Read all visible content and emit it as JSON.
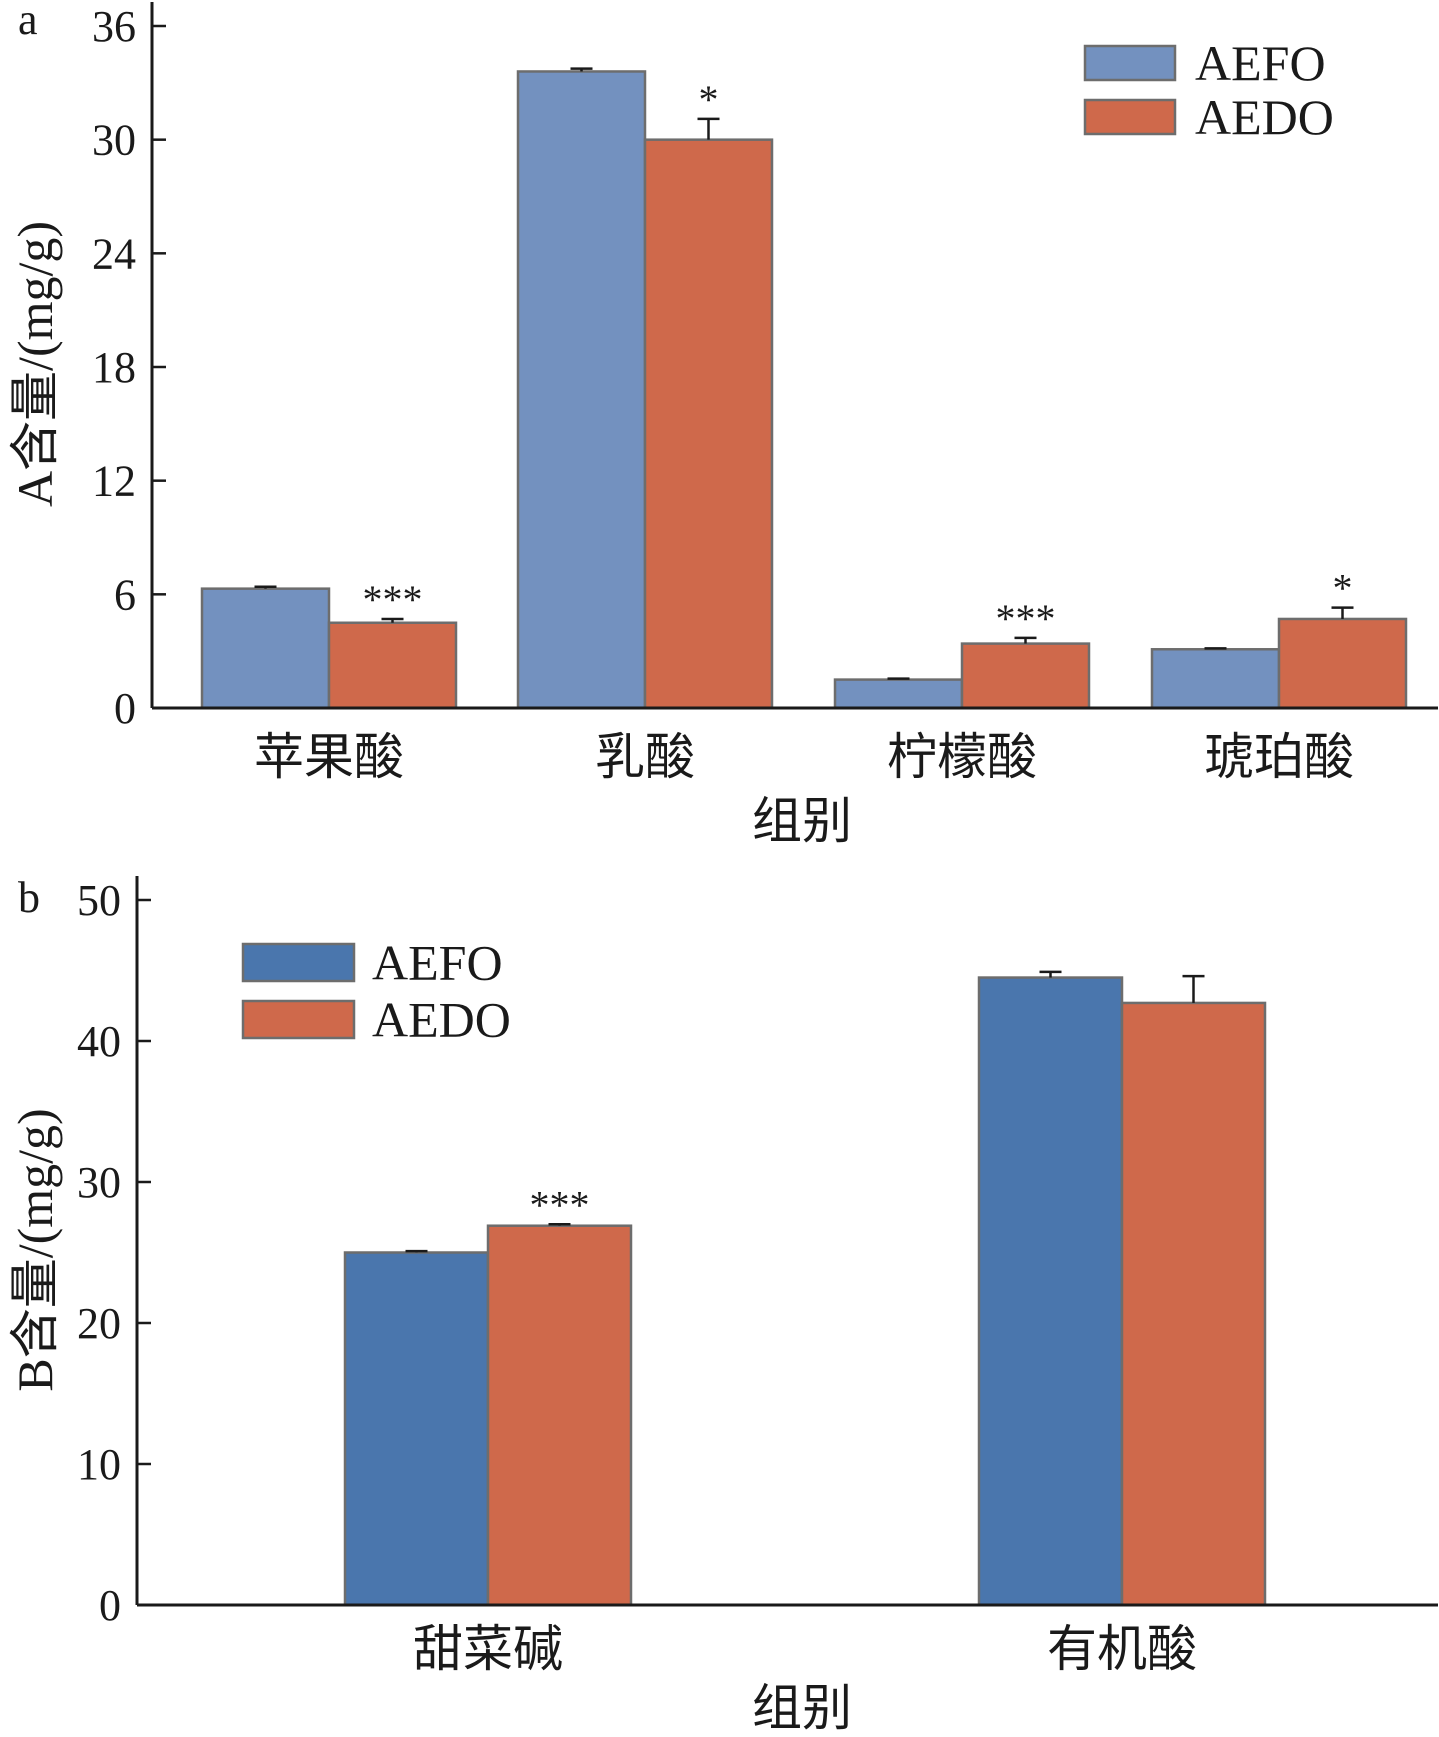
{
  "chart_data": [
    {
      "type": "bar",
      "panel_label": "a",
      "categories": [
        "苹果酸",
        "乳酸",
        "柠檬酸",
        "琥珀酸"
      ],
      "series": [
        {
          "name": "AEFO",
          "values": [
            6.3,
            33.6,
            1.5,
            3.1
          ],
          "errors": [
            0.1,
            0.15,
            0.05,
            0.05
          ],
          "color": "#7391bf"
        },
        {
          "name": "AEDO",
          "values": [
            4.5,
            30.0,
            3.4,
            4.7
          ],
          "errors": [
            0.2,
            1.1,
            0.3,
            0.6
          ],
          "color": "#cf694b"
        }
      ],
      "significance": [
        "***",
        "*",
        "***",
        "*"
      ],
      "xlabel": "组别",
      "ylabel": "A含量/(mg/g)",
      "ylim": [
        0,
        36
      ],
      "yticks": [
        0,
        6,
        12,
        18,
        24,
        30,
        36
      ],
      "legend_position": "top-right",
      "grid": false
    },
    {
      "type": "bar",
      "panel_label": "b",
      "categories": [
        "甜菜碱",
        "有机酸"
      ],
      "series": [
        {
          "name": "AEFO",
          "values": [
            25.0,
            44.5
          ],
          "errors": [
            0.1,
            0.4
          ],
          "color": "#4a76ad"
        },
        {
          "name": "AEDO",
          "values": [
            26.9,
            42.7
          ],
          "errors": [
            0.1,
            1.9
          ],
          "color": "#cf694b"
        }
      ],
      "significance": [
        "***",
        ""
      ],
      "xlabel": "组别",
      "ylabel": "B含量/(mg/g)",
      "ylim": [
        0,
        50
      ],
      "yticks": [
        0,
        10,
        20,
        30,
        40,
        50
      ],
      "legend_position": "top-left",
      "grid": false
    }
  ]
}
